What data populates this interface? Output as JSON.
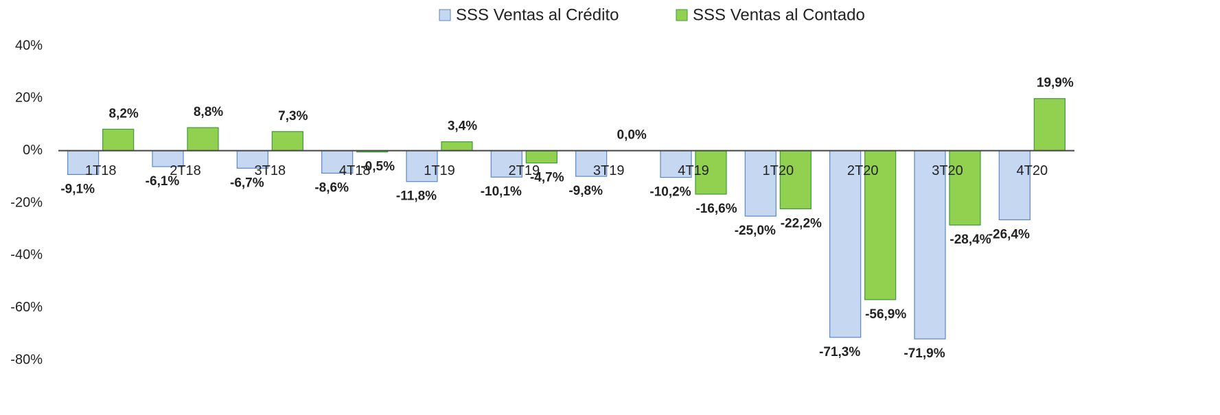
{
  "chart_data": {
    "type": "bar",
    "categories": [
      "1T18",
      "2T18",
      "3T18",
      "4T18",
      "1T19",
      "2T19",
      "3T19",
      "4T19",
      "1T20",
      "2T20",
      "3T20",
      "4T20"
    ],
    "series": [
      {
        "name": "SSS Ventas al Crédito",
        "color": "#c6d7f1",
        "stroke": "#5a86c8",
        "values": [
          -9.1,
          -6.1,
          -6.7,
          -8.6,
          -11.8,
          -10.1,
          -9.8,
          -10.2,
          -25.0,
          -71.3,
          -71.9,
          -26.4
        ],
        "value_labels": [
          "-9,1%",
          "-6,1%",
          "-6,7%",
          "-8,6%",
          "-11,8%",
          "-10,1%",
          "-9,8%",
          "-10,2%",
          "-25,0%",
          "-71,3%",
          "-71,9%",
          "-26,4%"
        ]
      },
      {
        "name": "SSS Ventas al Contado",
        "color": "#92d050",
        "stroke": "#3c9a3c",
        "values": [
          8.2,
          8.8,
          7.3,
          -0.5,
          3.4,
          -4.7,
          0.0,
          -16.6,
          -22.2,
          -56.9,
          -28.4,
          19.9
        ],
        "value_labels": [
          "8,2%",
          "8,8%",
          "7,3%",
          "-0,5%",
          "3,4%",
          "-4,7%",
          "0,0%",
          "-16,6%",
          "-22,2%",
          "-56,9%",
          "-28,4%",
          "19,9%"
        ]
      }
    ],
    "ylim": [
      -80,
      40
    ],
    "yticks": [
      {
        "value": -80,
        "label": "-80%"
      },
      {
        "value": -60,
        "label": "-60%"
      },
      {
        "value": -40,
        "label": "-40%"
      },
      {
        "value": -20,
        "label": "-20%"
      },
      {
        "value": 0,
        "label": "0%"
      },
      {
        "value": 20,
        "label": "20%"
      },
      {
        "value": 40,
        "label": "40%"
      }
    ],
    "legend": "top"
  }
}
